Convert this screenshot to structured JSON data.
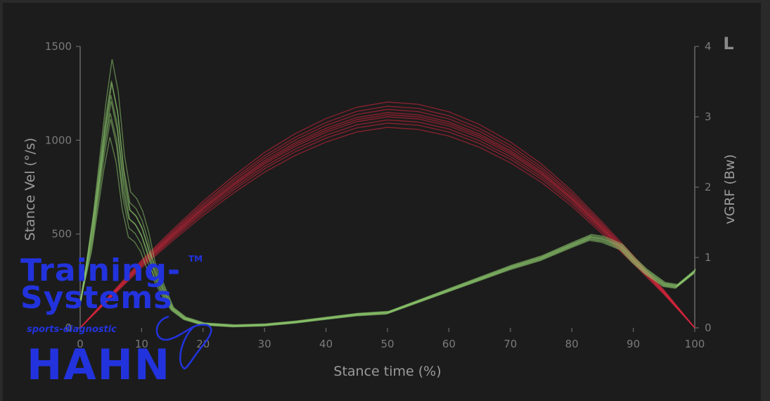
{
  "chart_data": {
    "type": "line",
    "corner_label": "L",
    "xlabel": "Stance time (%)",
    "ylabel_left": "Stance Vel (°/s)",
    "ylabel_right": "vGRF (Bw)",
    "xlim": [
      0,
      100
    ],
    "ylim_left": [
      0,
      1500
    ],
    "ylim_right": [
      0,
      4
    ],
    "x_ticks": [
      "0",
      "10",
      "20",
      "30",
      "40",
      "50",
      "60",
      "70",
      "80",
      "90",
      "100"
    ],
    "y_left_ticks": [
      "0",
      "500",
      "1000",
      "1500"
    ],
    "y_right_ticks": [
      "0",
      "1",
      "2",
      "3",
      "4"
    ],
    "grid": false,
    "series": [
      {
        "color": "#d8263c",
        "axis": "right",
        "x": [
          0,
          5,
          10,
          15,
          20,
          25,
          30,
          35,
          40,
          45,
          50,
          55,
          60,
          65,
          70,
          75,
          80,
          85,
          90,
          95,
          100
        ],
        "y": [
          0,
          0.45,
          0.9,
          1.3,
          1.68,
          2.02,
          2.33,
          2.58,
          2.78,
          2.93,
          3.0,
          2.97,
          2.87,
          2.7,
          2.47,
          2.18,
          1.82,
          1.4,
          0.96,
          0.5,
          0
        ]
      },
      {
        "color": "#8ecb6e",
        "axis": "left",
        "x": [
          0,
          2,
          4,
          5,
          6,
          7,
          8,
          9,
          10,
          11,
          12,
          13,
          14,
          15,
          17,
          20,
          25,
          30,
          35,
          40,
          45,
          50,
          55,
          60,
          65,
          70,
          75,
          80,
          83,
          85,
          88,
          90,
          92,
          95,
          97,
          100
        ],
        "y": [
          130,
          500,
          1000,
          1200,
          1050,
          760,
          590,
          560,
          500,
          400,
          300,
          230,
          160,
          100,
          50,
          20,
          10,
          15,
          30,
          50,
          70,
          80,
          140,
          200,
          260,
          320,
          370,
          440,
          480,
          470,
          430,
          360,
          300,
          230,
          220,
          300
        ]
      }
    ]
  },
  "logo": {
    "line1": "Training-",
    "line2": "Systems",
    "tm": "TM",
    "tagline": "sports-diagnostic",
    "brand": "HAHN"
  }
}
